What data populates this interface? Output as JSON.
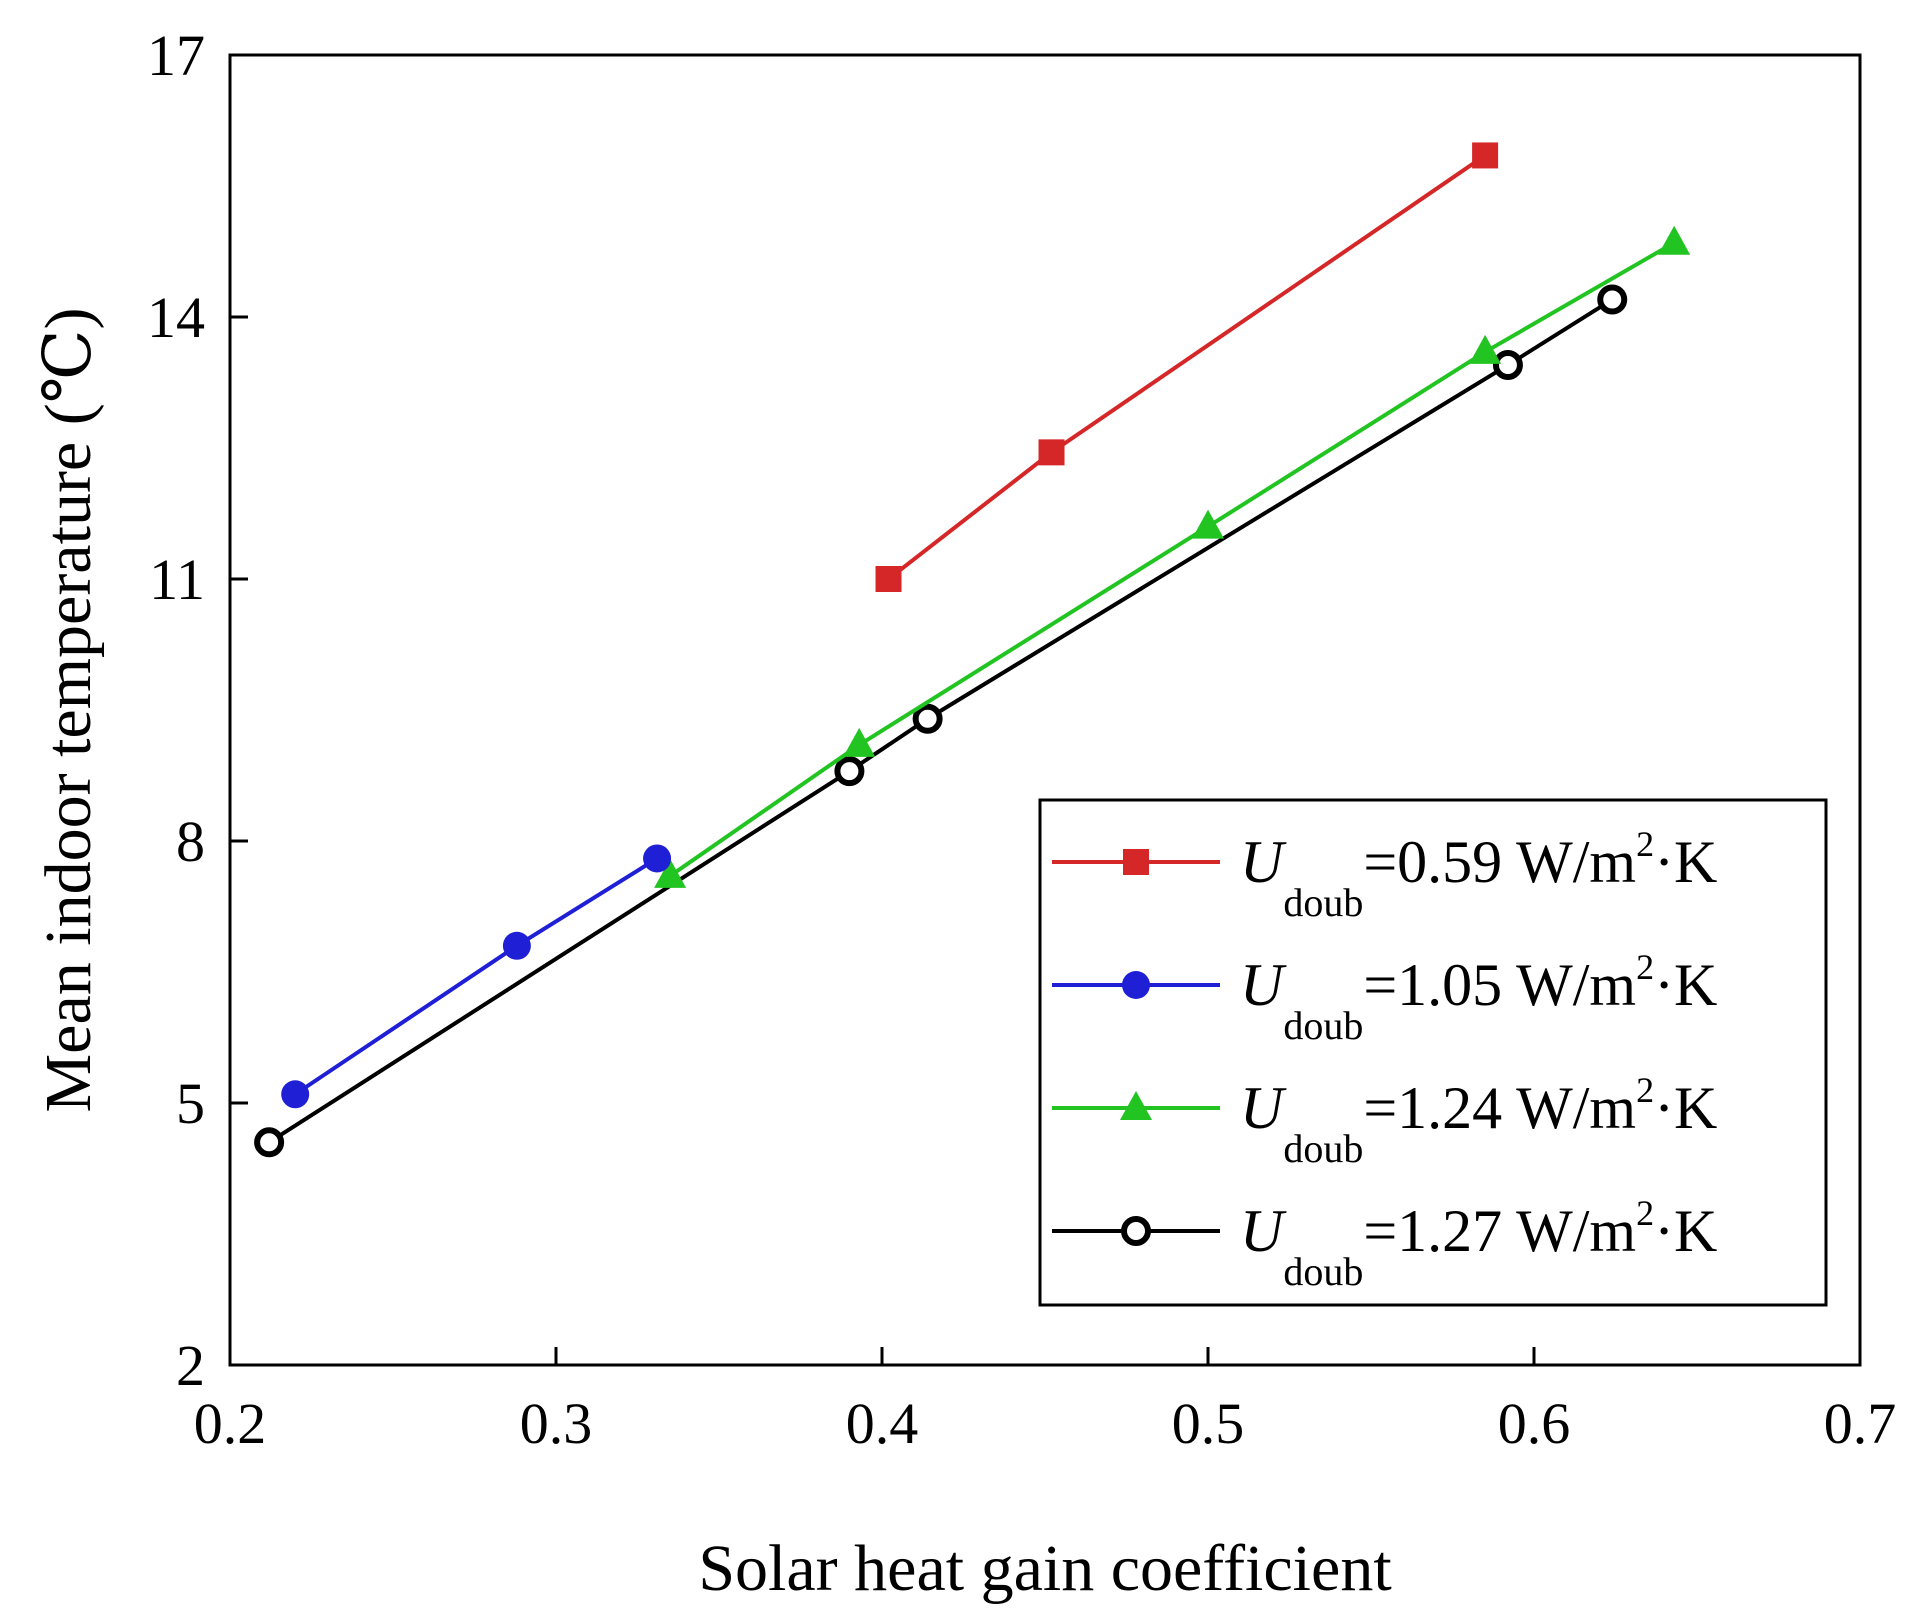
{
  "chart_data": {
    "type": "line",
    "title": "",
    "xlabel": "Solar heat gain coefficient",
    "ylabel": "Mean indoor temperature (℃)",
    "xlim": [
      0.2,
      0.7
    ],
    "ylim": [
      2,
      17
    ],
    "xticks": [
      "0.2",
      "0.3",
      "0.4",
      "0.5",
      "0.6",
      "0.7"
    ],
    "yticks": [
      "2",
      "5",
      "8",
      "11",
      "14",
      "17"
    ],
    "grid": false,
    "legend_position": "bottom-right",
    "series": [
      {
        "name": "U_doub=0.59 W/m2·K",
        "legend": {
          "u": "U",
          "sub": "doub",
          "value": "=0.59 W/m",
          "sup": "2",
          "tail": "·K"
        },
        "color": "#d62728",
        "marker": "square",
        "x": [
          0.402,
          0.452,
          0.585
        ],
        "y": [
          11.0,
          12.45,
          15.85
        ]
      },
      {
        "name": "U_doub=1.05 W/m2·K",
        "legend": {
          "u": "U",
          "sub": "doub",
          "value": "=1.05 W/m",
          "sup": "2",
          "tail": "·K"
        },
        "color": "#1f1fd6",
        "marker": "circle",
        "x": [
          0.22,
          0.288,
          0.331
        ],
        "y": [
          5.1,
          6.8,
          7.8
        ]
      },
      {
        "name": "U_doub=1.24 W/m2·K",
        "legend": {
          "u": "U",
          "sub": "doub",
          "value": "=1.24 W/m",
          "sup": "2",
          "tail": "·K"
        },
        "color": "#22c422",
        "marker": "triangle",
        "x": [
          0.335,
          0.393,
          0.5,
          0.585,
          0.643
        ],
        "y": [
          7.6,
          9.1,
          11.6,
          13.6,
          14.85
        ]
      },
      {
        "name": "U_doub=1.27 W/m2·K",
        "legend": {
          "u": "U",
          "sub": "doub",
          "value": "=1.27 W/m",
          "sup": "2",
          "tail": "·K"
        },
        "color": "#000000",
        "marker": "open-circle",
        "x": [
          0.212,
          0.39,
          0.414,
          0.592,
          0.624
        ],
        "y": [
          4.55,
          8.8,
          9.4,
          13.45,
          14.2
        ]
      }
    ]
  }
}
